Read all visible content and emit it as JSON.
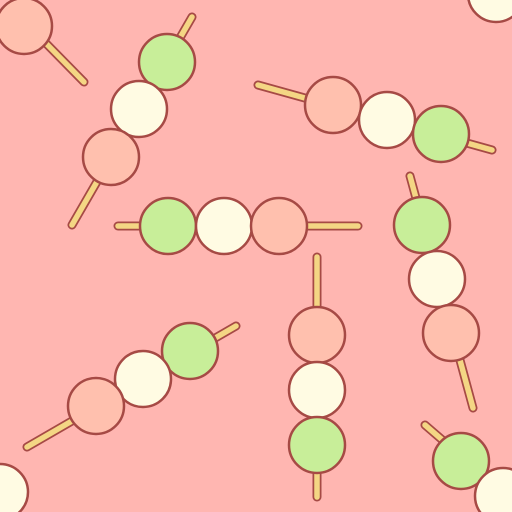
{
  "pattern": {
    "name": "dango-skewer-pattern",
    "motif": "hanami-dango",
    "skewer_count": 9,
    "colors": {
      "background": "#FFB6B1",
      "outline": "#A64A45",
      "stick": "#F4D684",
      "pink_dumpling": "#FFC0AE",
      "white_dumpling": "#FFFBE3",
      "green_dumpling": "#C8EE99"
    }
  }
}
